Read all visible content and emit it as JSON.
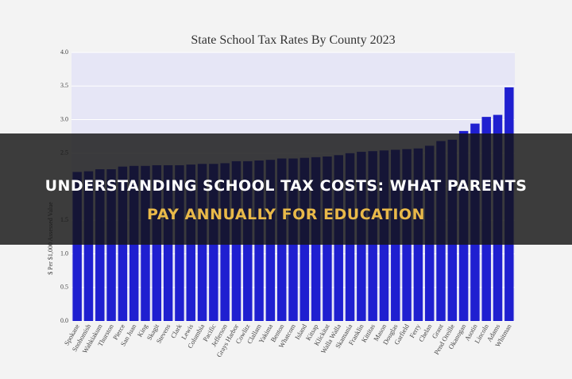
{
  "chart_data": {
    "type": "bar",
    "title": "State School Tax Rates By County 2023",
    "ylabel": "$ Per $1,000 Assessed Value",
    "categories": [
      "Spokane",
      "Snohomish",
      "Wahkiakum",
      "Thurston",
      "Pierce",
      "San Juan",
      "King",
      "Skagit",
      "Stevens",
      "Clark",
      "Lewis",
      "Columbia",
      "Pacific",
      "Jefferson",
      "Grays Harbor",
      "Cowlitz",
      "Clallam",
      "Yakima",
      "Benton",
      "Whatcom",
      "Island",
      "Kitsap",
      "Klickitat",
      "Walla Walla",
      "Skamania",
      "Franklin",
      "Kittitas",
      "Mason",
      "Douglas",
      "Garfield",
      "Ferry",
      "Chelan",
      "Grant",
      "Pend Oreille",
      "Okanogan",
      "Asotin",
      "Lincoln",
      "Adams",
      "Whitman"
    ],
    "values": [
      2.22,
      2.23,
      2.26,
      2.26,
      2.3,
      2.31,
      2.31,
      2.32,
      2.32,
      2.32,
      2.33,
      2.34,
      2.34,
      2.35,
      2.38,
      2.38,
      2.39,
      2.4,
      2.42,
      2.42,
      2.43,
      2.44,
      2.45,
      2.47,
      2.5,
      2.52,
      2.53,
      2.54,
      2.55,
      2.56,
      2.57,
      2.61,
      2.68,
      2.7,
      2.83,
      2.94,
      3.04,
      3.07,
      3.48
    ],
    "color": "#1f1fd0",
    "ylim": [
      0,
      4
    ],
    "yticks": [
      {
        "value": 0,
        "label": "0.0"
      },
      {
        "value": 0.5,
        "label": "0.5"
      },
      {
        "value": 1,
        "label": "1.0"
      },
      {
        "value": 1.5,
        "label": "1.5"
      },
      {
        "value": 2,
        "label": "2.0"
      },
      {
        "value": 2.5,
        "label": "2.5"
      },
      {
        "value": 3,
        "label": "3.0"
      },
      {
        "value": 3.5,
        "label": "3.5"
      },
      {
        "value": 4,
        "label": "4.0"
      }
    ],
    "grid": true
  },
  "overlay": {
    "line1": "UNDERSTANDING SCHOOL TAX COSTS: WHAT PARENTS",
    "line2": "PAY ANNUALLY FOR EDUCATION"
  }
}
